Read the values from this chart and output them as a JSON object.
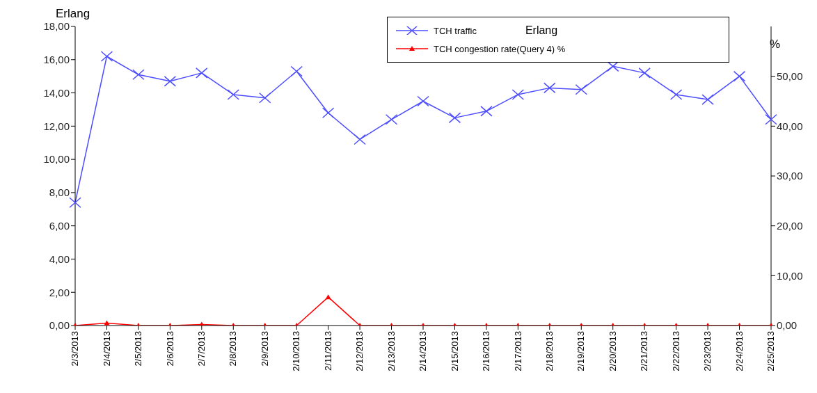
{
  "chart_data": {
    "type": "line",
    "ylabel": "Erlang",
    "y2label": "%",
    "annotations": [
      "Erlang"
    ],
    "categories": [
      "2/3/2013",
      "2/4/2013",
      "2/5/2013",
      "2/6/2013",
      "2/7/2013",
      "2/8/2013",
      "2/9/2013",
      "2/10/2013",
      "2/11/2013",
      "2/12/2013",
      "2/13/2013",
      "2/14/2013",
      "2/15/2013",
      "2/16/2013",
      "2/17/2013",
      "2/18/2013",
      "2/19/2013",
      "2/20/2013",
      "2/21/2013",
      "2/22/2013",
      "2/23/2013",
      "2/24/2013",
      "2/25/2013"
    ],
    "series": [
      {
        "name": "TCH traffic",
        "color": "#4d4dff",
        "marker": "cross",
        "values": [
          7.4,
          16.2,
          15.1,
          14.7,
          15.2,
          13.9,
          13.7,
          15.3,
          12.8,
          11.2,
          12.4,
          13.5,
          12.5,
          12.9,
          13.9,
          14.3,
          14.2,
          15.6,
          15.2,
          13.9,
          13.6,
          15.0,
          12.4
        ]
      },
      {
        "name": "TCH congestion rate(Query 4) %",
        "color": "#ff0000",
        "marker": "triangle",
        "axis": "y2",
        "values": [
          0,
          0.5,
          0,
          0,
          0.2,
          0,
          0,
          0,
          5.7,
          0,
          0,
          0,
          0,
          0,
          0,
          0,
          0,
          0,
          0,
          0,
          0,
          0,
          0
        ]
      }
    ],
    "ylim": [
      0,
      18
    ],
    "yticks": [
      {
        "value": 0,
        "label": "0,00"
      },
      {
        "value": 2,
        "label": "2,00"
      },
      {
        "value": 4,
        "label": "4,00"
      },
      {
        "value": 6,
        "label": "6,00"
      },
      {
        "value": 8,
        "label": "8,00"
      },
      {
        "value": 10,
        "label": "10,00"
      },
      {
        "value": 12,
        "label": "12,00"
      },
      {
        "value": 14,
        "label": "14,00"
      },
      {
        "value": 16,
        "label": "16,00"
      },
      {
        "value": 18,
        "label": "18,00"
      }
    ],
    "y2lim": [
      0,
      60
    ],
    "y2ticks": [
      {
        "value": 0,
        "label": "0,00"
      },
      {
        "value": 10,
        "label": "10,00"
      },
      {
        "value": 20,
        "label": "20,00"
      },
      {
        "value": 30,
        "label": "30,00"
      },
      {
        "value": 40,
        "label": "40,00"
      },
      {
        "value": 50,
        "label": "50,00"
      }
    ],
    "legend": "top right",
    "grid": false
  }
}
